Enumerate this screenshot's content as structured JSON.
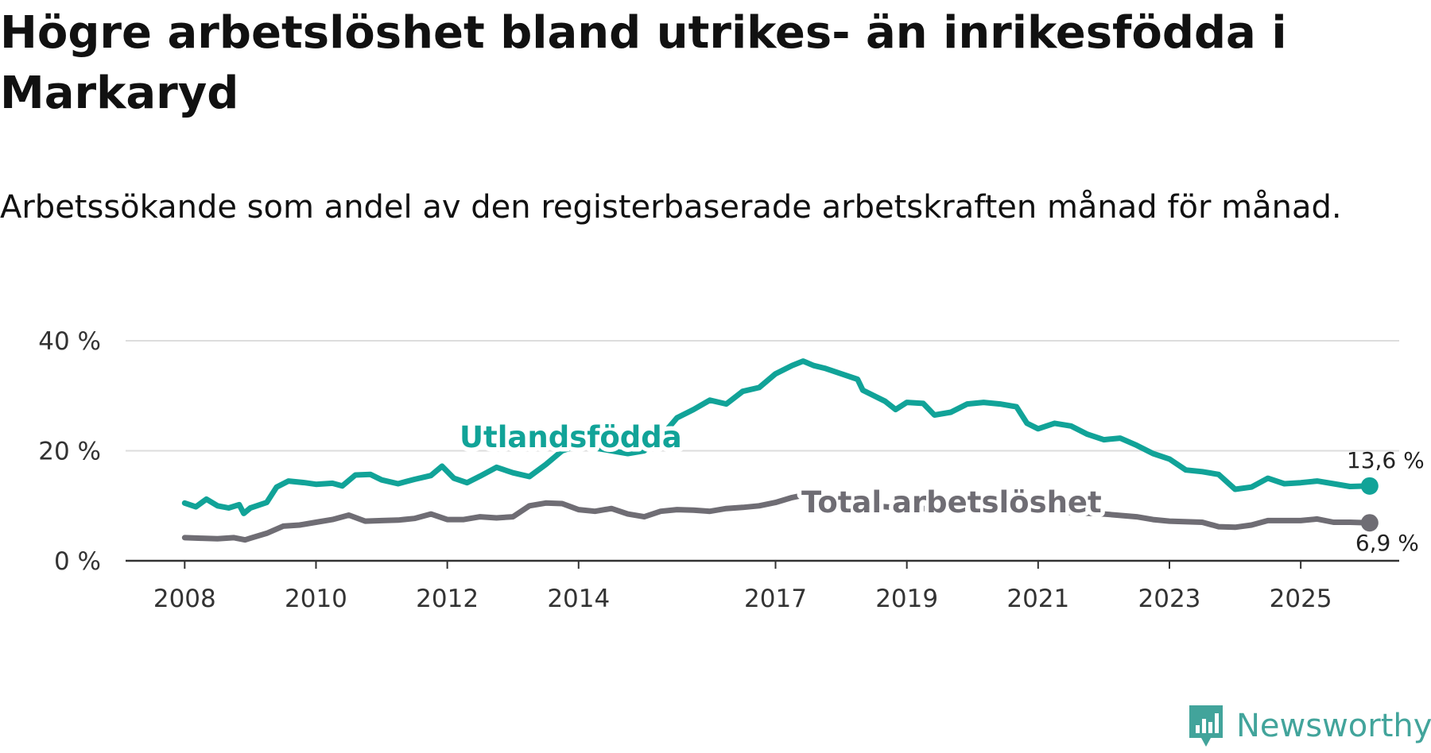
{
  "title": "Högre arbetslöshet bland utrikes- än inrikesfödda i Markaryd",
  "subtitle": "Arbetssökande som andel av den registerbaserade arbetskraften månad för månad.",
  "brand": "Newsworthy",
  "colors": {
    "foreign": "#11a398",
    "total": "#6f6d74",
    "grid": "#dddddd",
    "axis": "#333333"
  },
  "chart_data": {
    "type": "line",
    "title": "Högre arbetslöshet bland utrikes- än inrikesfödda i Markaryd",
    "subtitle": "Arbetssökande som andel av den registerbaserade arbetskraften månad för månad.",
    "xlabel": "",
    "ylabel": "",
    "xlim": [
      2007.1,
      2026.5
    ],
    "ylim": [
      0,
      40
    ],
    "y_ticks": [
      0,
      20,
      40
    ],
    "y_tick_labels": [
      "0 %",
      "20 %",
      "40 %"
    ],
    "x_ticks": [
      2008,
      2010,
      2012,
      2014,
      2017,
      2019,
      2021,
      2023,
      2025
    ],
    "x_tick_labels": [
      "2008",
      "2010",
      "2012",
      "2014",
      "2017",
      "2019",
      "2021",
      "2023",
      "2025"
    ],
    "grid": true,
    "series": [
      {
        "name": "Utlandsfödda",
        "label": "Utlandsfödda",
        "end_label": "13,6 %",
        "points": [
          [
            2008.0,
            10.5
          ],
          [
            2008.17,
            9.8
          ],
          [
            2008.33,
            11.2
          ],
          [
            2008.5,
            10.0
          ],
          [
            2008.67,
            9.6
          ],
          [
            2008.83,
            10.2
          ],
          [
            2008.9,
            8.6
          ],
          [
            2009.0,
            9.6
          ],
          [
            2009.25,
            10.6
          ],
          [
            2009.4,
            13.4
          ],
          [
            2009.58,
            14.5
          ],
          [
            2009.83,
            14.2
          ],
          [
            2010.0,
            13.9
          ],
          [
            2010.25,
            14.1
          ],
          [
            2010.4,
            13.6
          ],
          [
            2010.6,
            15.6
          ],
          [
            2010.83,
            15.7
          ],
          [
            2011.0,
            14.7
          ],
          [
            2011.25,
            14.0
          ],
          [
            2011.5,
            14.8
          ],
          [
            2011.75,
            15.5
          ],
          [
            2011.92,
            17.2
          ],
          [
            2012.1,
            15.0
          ],
          [
            2012.3,
            14.2
          ],
          [
            2012.5,
            15.4
          ],
          [
            2012.75,
            17.0
          ],
          [
            2013.0,
            16.0
          ],
          [
            2013.25,
            15.3
          ],
          [
            2013.5,
            17.5
          ],
          [
            2013.75,
            20.0
          ],
          [
            2014.0,
            21.0
          ],
          [
            2014.25,
            20.5
          ],
          [
            2014.5,
            20.0
          ],
          [
            2014.75,
            19.5
          ],
          [
            2015.0,
            20.0
          ],
          [
            2015.25,
            22.5
          ],
          [
            2015.5,
            26.0
          ],
          [
            2015.75,
            27.5
          ],
          [
            2016.0,
            29.2
          ],
          [
            2016.25,
            28.5
          ],
          [
            2016.5,
            30.8
          ],
          [
            2016.75,
            31.5
          ],
          [
            2017.0,
            34.0
          ],
          [
            2017.25,
            35.5
          ],
          [
            2017.42,
            36.3
          ],
          [
            2017.58,
            35.5
          ],
          [
            2017.75,
            35.0
          ],
          [
            2018.0,
            34.0
          ],
          [
            2018.25,
            33.0
          ],
          [
            2018.33,
            31.0
          ],
          [
            2018.5,
            30.0
          ],
          [
            2018.67,
            29.0
          ],
          [
            2018.83,
            27.5
          ],
          [
            2019.0,
            28.8
          ],
          [
            2019.25,
            28.6
          ],
          [
            2019.42,
            26.5
          ],
          [
            2019.67,
            27.0
          ],
          [
            2019.92,
            28.5
          ],
          [
            2020.17,
            28.8
          ],
          [
            2020.42,
            28.5
          ],
          [
            2020.67,
            28.0
          ],
          [
            2020.83,
            25.0
          ],
          [
            2021.0,
            24.0
          ],
          [
            2021.25,
            25.0
          ],
          [
            2021.5,
            24.5
          ],
          [
            2021.75,
            23.0
          ],
          [
            2022.0,
            22.0
          ],
          [
            2022.25,
            22.3
          ],
          [
            2022.5,
            21.0
          ],
          [
            2022.75,
            19.5
          ],
          [
            2023.0,
            18.5
          ],
          [
            2023.25,
            16.5
          ],
          [
            2023.5,
            16.2
          ],
          [
            2023.75,
            15.7
          ],
          [
            2024.0,
            13.0
          ],
          [
            2024.25,
            13.4
          ],
          [
            2024.5,
            15.0
          ],
          [
            2024.75,
            14.0
          ],
          [
            2025.0,
            14.2
          ],
          [
            2025.25,
            14.5
          ],
          [
            2025.5,
            14.0
          ],
          [
            2025.75,
            13.5
          ],
          [
            2026.05,
            13.6
          ]
        ]
      },
      {
        "name": "Total arbetslöshet",
        "label": "Total arbetslöshet",
        "end_label": "6,9 %",
        "points": [
          [
            2008.0,
            4.2
          ],
          [
            2008.25,
            4.1
          ],
          [
            2008.5,
            4.0
          ],
          [
            2008.75,
            4.2
          ],
          [
            2008.92,
            3.8
          ],
          [
            2009.0,
            4.1
          ],
          [
            2009.25,
            5.0
          ],
          [
            2009.5,
            6.3
          ],
          [
            2009.75,
            6.5
          ],
          [
            2010.0,
            7.0
          ],
          [
            2010.25,
            7.5
          ],
          [
            2010.5,
            8.3
          ],
          [
            2010.75,
            7.2
          ],
          [
            2011.0,
            7.3
          ],
          [
            2011.25,
            7.4
          ],
          [
            2011.5,
            7.7
          ],
          [
            2011.75,
            8.5
          ],
          [
            2012.0,
            7.5
          ],
          [
            2012.25,
            7.5
          ],
          [
            2012.5,
            8.0
          ],
          [
            2012.75,
            7.8
          ],
          [
            2013.0,
            8.0
          ],
          [
            2013.25,
            10.0
          ],
          [
            2013.5,
            10.5
          ],
          [
            2013.75,
            10.4
          ],
          [
            2014.0,
            9.3
          ],
          [
            2014.25,
            9.0
          ],
          [
            2014.5,
            9.5
          ],
          [
            2014.75,
            8.5
          ],
          [
            2015.0,
            8.0
          ],
          [
            2015.25,
            9.0
          ],
          [
            2015.5,
            9.3
          ],
          [
            2015.75,
            9.2
          ],
          [
            2016.0,
            9.0
          ],
          [
            2016.25,
            9.5
          ],
          [
            2016.5,
            9.7
          ],
          [
            2016.75,
            10.0
          ],
          [
            2017.0,
            10.6
          ],
          [
            2017.25,
            11.5
          ],
          [
            2017.45,
            12.0
          ],
          [
            2017.75,
            11.0
          ],
          [
            2018.0,
            10.5
          ],
          [
            2018.5,
            10.0
          ],
          [
            2019.0,
            9.5
          ],
          [
            2019.5,
            9.5
          ],
          [
            2020.0,
            9.5
          ],
          [
            2020.5,
            9.5
          ],
          [
            2021.0,
            9.0
          ],
          [
            2021.5,
            8.8
          ],
          [
            2022.0,
            8.5
          ],
          [
            2022.5,
            8.0
          ],
          [
            2022.75,
            7.5
          ],
          [
            2023.0,
            7.2
          ],
          [
            2023.5,
            7.0
          ],
          [
            2023.75,
            6.2
          ],
          [
            2024.0,
            6.1
          ],
          [
            2024.25,
            6.5
          ],
          [
            2024.5,
            7.3
          ],
          [
            2024.75,
            7.3
          ],
          [
            2025.0,
            7.3
          ],
          [
            2025.25,
            7.6
          ],
          [
            2025.5,
            7.0
          ],
          [
            2025.75,
            7.0
          ],
          [
            2026.05,
            6.9
          ]
        ]
      }
    ]
  }
}
